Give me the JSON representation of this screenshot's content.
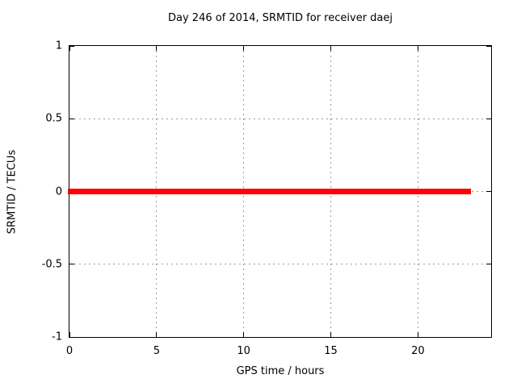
{
  "chart_data": {
    "type": "line",
    "title": "Day 246 of 2014, SRMTID for receiver daej",
    "xlabel": "GPS time / hours",
    "ylabel": "SRMTID / TECUs",
    "xlim": [
      0,
      24.2
    ],
    "ylim": [
      -1,
      1
    ],
    "xticks": [
      0,
      5,
      10,
      15,
      20
    ],
    "yticks": [
      -1,
      -0.5,
      0,
      0.5,
      1
    ],
    "xtick_labels": [
      "0",
      "5",
      "10",
      "15",
      "20"
    ],
    "ytick_labels": [
      "-1",
      "-0.5",
      "0",
      "0.5",
      "1"
    ],
    "grid": true,
    "legend_position": "none",
    "series": [
      {
        "name": "SRMTID",
        "color": "#ff0000",
        "line_width": 7,
        "x": [
          -0.1,
          23.05
        ],
        "y": [
          0,
          0
        ]
      }
    ]
  },
  "colors": {
    "background": "#ffffff",
    "frame": "#000000",
    "grid": "#9b9b9b",
    "text": "#000000",
    "series": "#ff0000"
  }
}
